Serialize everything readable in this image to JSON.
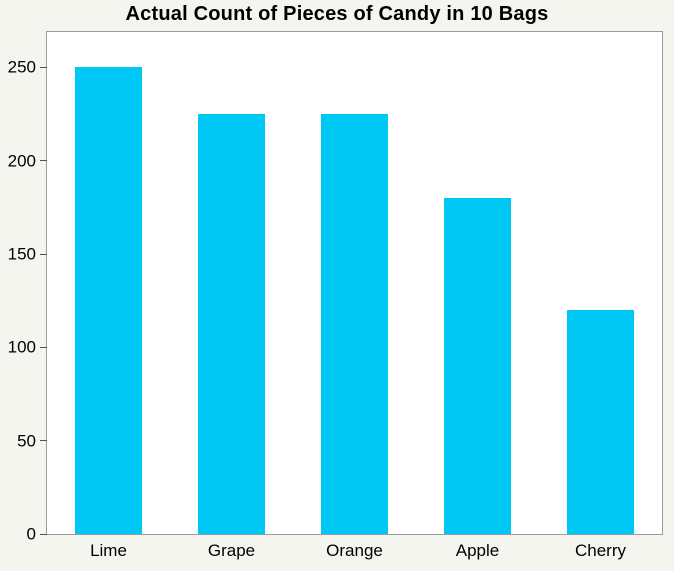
{
  "chart_data": {
    "type": "bar",
    "title": "Actual Count of Pieces of Candy in 10 Bags",
    "categories": [
      "Lime",
      "Grape",
      "Orange",
      "Apple",
      "Cherry"
    ],
    "values": [
      250,
      225,
      225,
      180,
      120
    ],
    "xlabel": "",
    "ylabel": "",
    "ylim": [
      0,
      269
    ],
    "yticks": [
      0,
      50,
      100,
      150,
      200,
      250
    ],
    "grid": false,
    "legend": false,
    "colors": {
      "bar": "#00c8f5",
      "figure_background": "#f5f5f0",
      "plot_background": "#ffffff",
      "plot_border": "#9b9b9b",
      "tick_mark": "#555555",
      "text": "#000000"
    }
  }
}
